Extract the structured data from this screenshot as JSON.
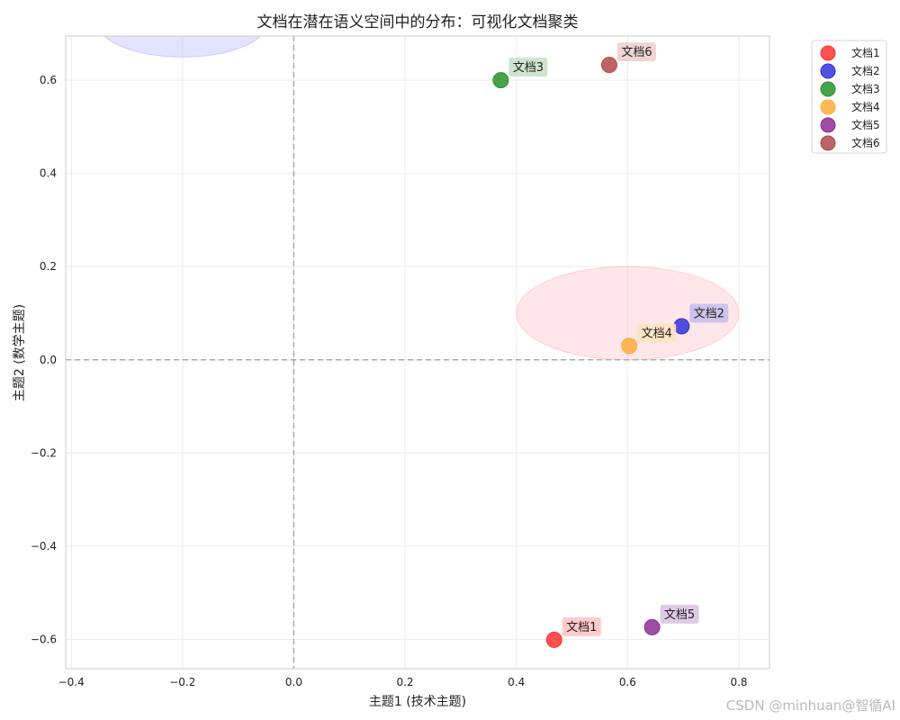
{
  "chart_data": {
    "type": "scatter",
    "title": "文档在潜在语义空间中的分布：可视化文档聚类",
    "xlabel": "主题1 (技术主题)",
    "ylabel": "主题2 (数学主题)",
    "xlim": [
      -0.41,
      0.855
    ],
    "ylim": [
      -0.663,
      0.695
    ],
    "xticks": [
      -0.4,
      -0.2,
      0.0,
      0.2,
      0.4,
      0.6,
      0.8
    ],
    "xtick_labels": [
      "−0.4",
      "−0.2",
      "0.0",
      "0.2",
      "0.4",
      "0.6",
      "0.8"
    ],
    "yticks": [
      -0.6,
      -0.4,
      -0.2,
      0.0,
      0.2,
      0.4,
      0.6
    ],
    "ytick_labels": [
      "−0.6",
      "−0.4",
      "−0.2",
      "0.0",
      "0.2",
      "0.4",
      "0.6"
    ],
    "grid": true,
    "legend_position": "outside-top-right",
    "reference_lines": [
      {
        "axis": "x",
        "value": 0.0,
        "style": "dashed"
      },
      {
        "axis": "y",
        "value": 0.0,
        "style": "dashed"
      }
    ],
    "cluster_ellipses": [
      {
        "cx": 0.6,
        "cy": 0.1,
        "rx": 0.2,
        "ry": 0.1,
        "color": "#ffb6c1"
      },
      {
        "cx": -0.2,
        "cy": 0.72,
        "rx": 0.15,
        "ry": 0.07,
        "color": "#b0b0ff"
      }
    ],
    "series": [
      {
        "name": "文档1",
        "x": 0.468,
        "y": -0.601,
        "color": "#ff3333",
        "label_bg": "#ffc4c4"
      },
      {
        "name": "文档2",
        "x": 0.697,
        "y": 0.072,
        "color": "#3333dd",
        "label_bg": "#c8c0ee"
      },
      {
        "name": "文档3",
        "x": 0.372,
        "y": 0.6,
        "color": "#2a922a",
        "label_bg": "#c6e2c6"
      },
      {
        "name": "文档4",
        "x": 0.603,
        "y": 0.03,
        "color": "#ffab3a",
        "label_bg": "#ffe2c2"
      },
      {
        "name": "文档5",
        "x": 0.644,
        "y": -0.574,
        "color": "#8e2d98",
        "label_bg": "#ddc4e2"
      },
      {
        "name": "文档6",
        "x": 0.567,
        "y": 0.633,
        "color": "#b04a4a",
        "label_bg": "#ecd0cf"
      }
    ]
  },
  "watermark": "CSDN @minhuan@智循AI"
}
